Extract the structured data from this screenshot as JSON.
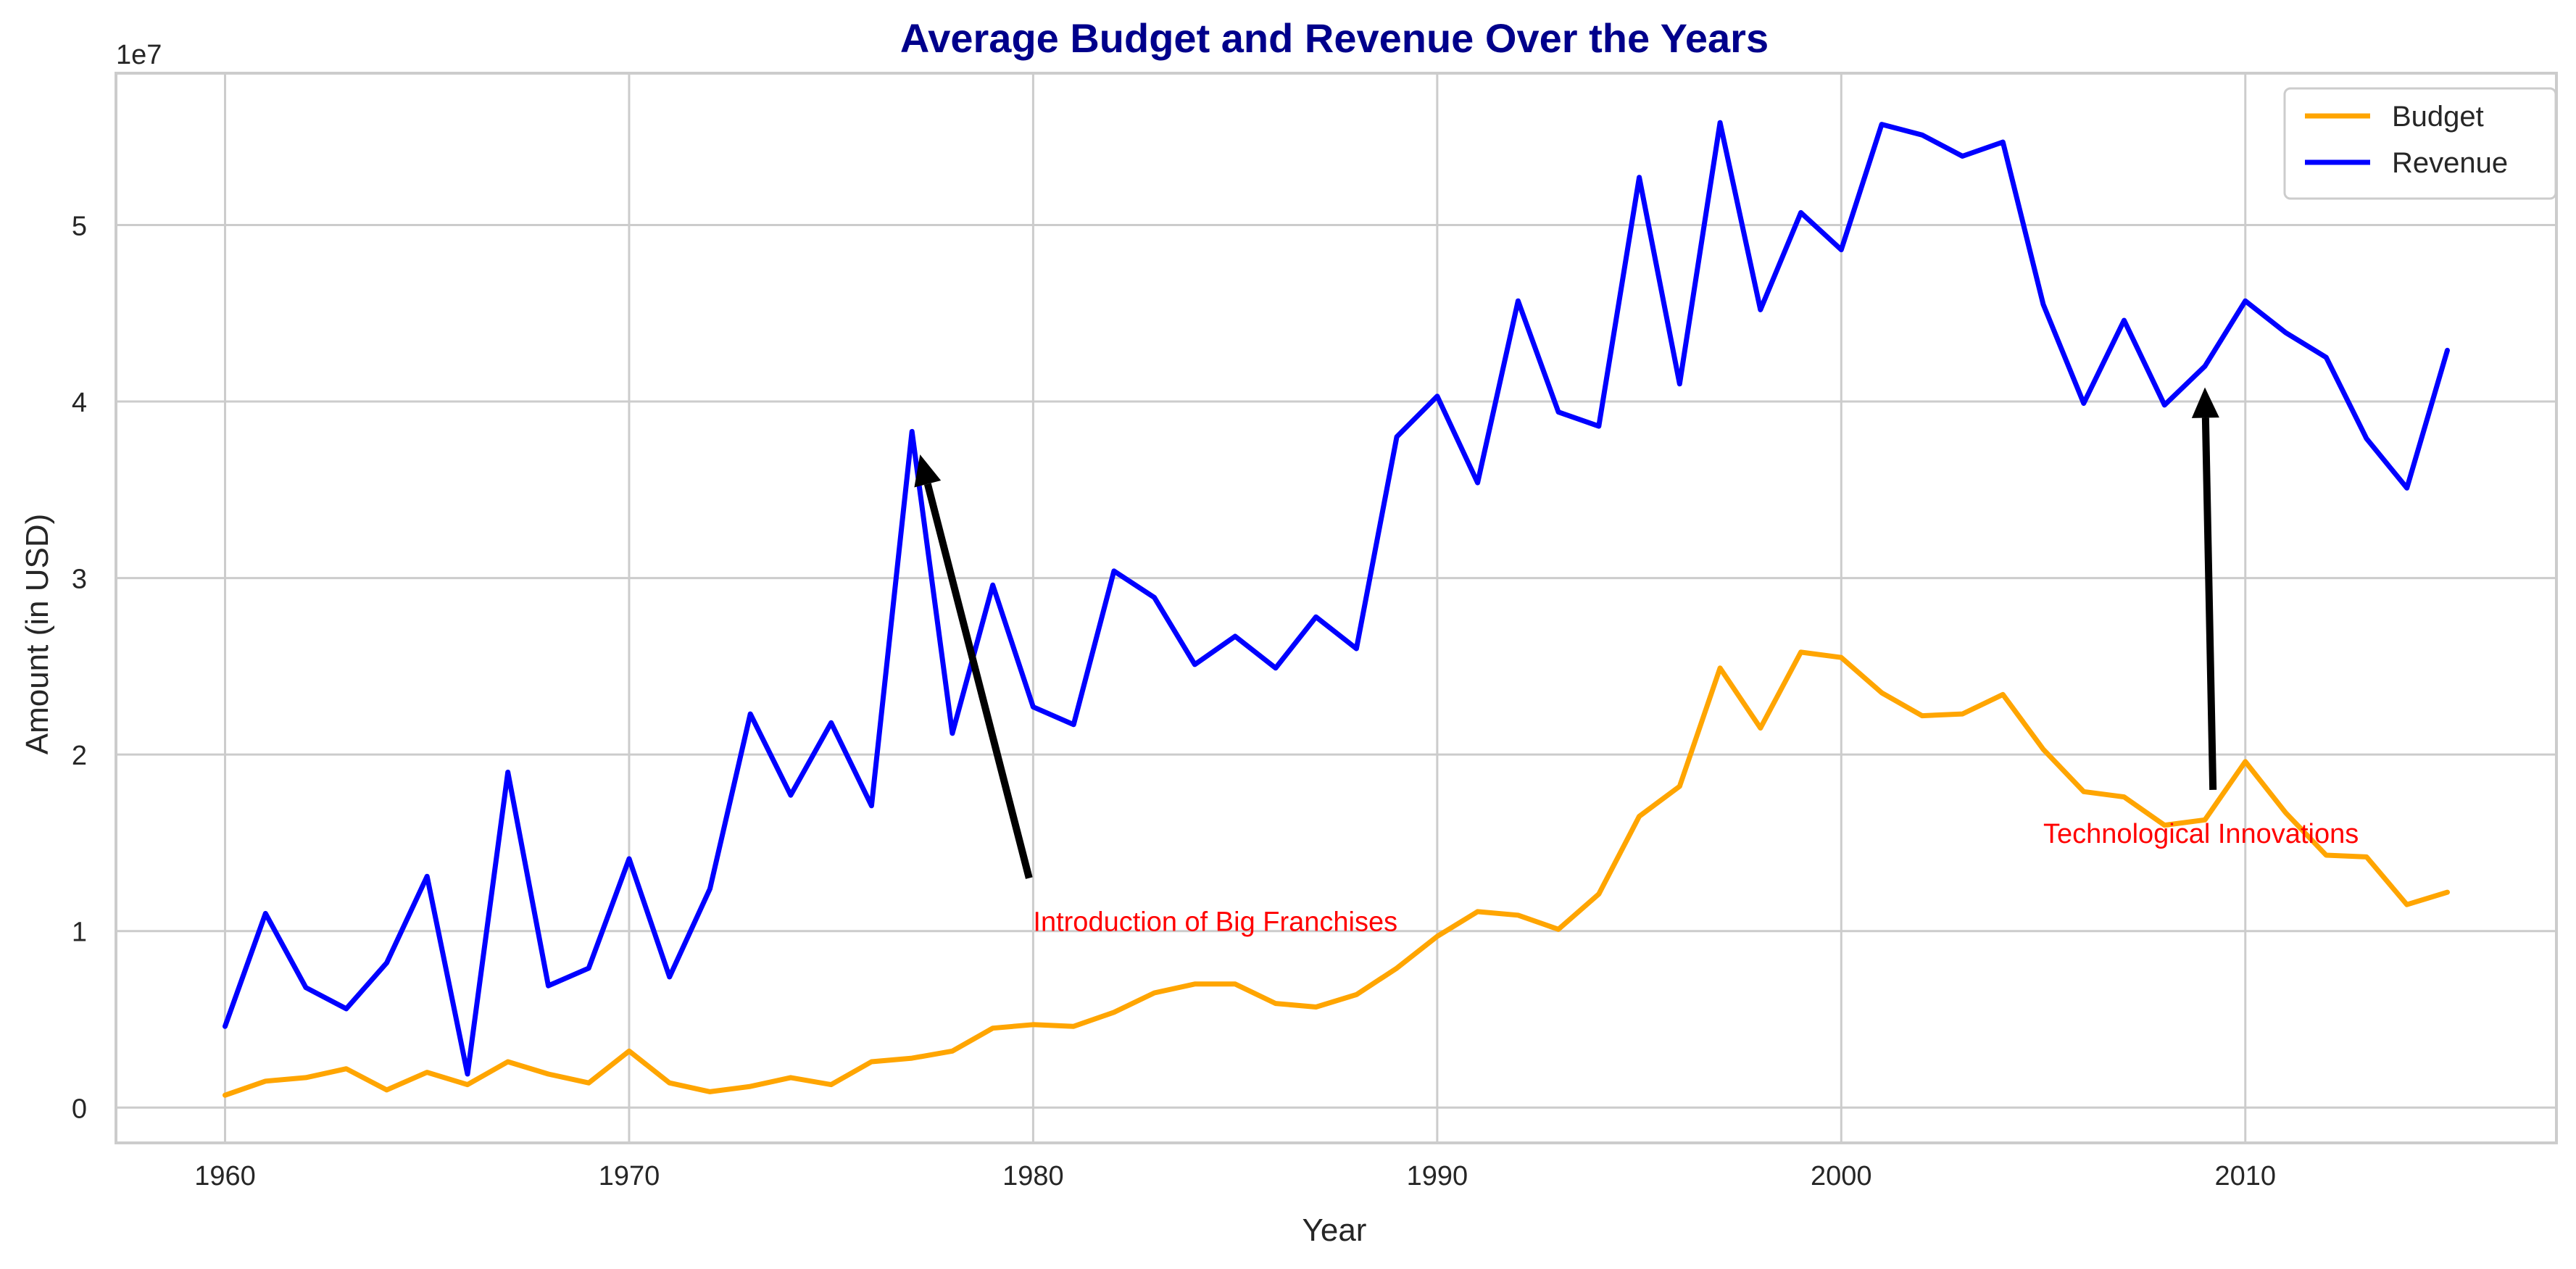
{
  "chart_data": {
    "type": "line",
    "title": "Average Budget and Revenue Over the Years",
    "xlabel": "Year",
    "ylabel": "Amount (in USD)",
    "y_offset_text": "1e7",
    "xlim": [
      1957.3,
      2017.7
    ],
    "ylim": [
      -2000000,
      58600000
    ],
    "xticks": [
      1960,
      1970,
      1980,
      1990,
      2000,
      2010
    ],
    "yticks": [
      0,
      1,
      2,
      3,
      4,
      5
    ],
    "grid": true,
    "legend_position": "top-right",
    "x": [
      1960,
      1961,
      1962,
      1963,
      1964,
      1965,
      1966,
      1967,
      1968,
      1969,
      1970,
      1971,
      1972,
      1973,
      1974,
      1975,
      1976,
      1977,
      1978,
      1979,
      1980,
      1981,
      1982,
      1983,
      1984,
      1985,
      1986,
      1987,
      1988,
      1989,
      1990,
      1991,
      1992,
      1993,
      1994,
      1995,
      1996,
      1997,
      1998,
      1999,
      2000,
      2001,
      2002,
      2003,
      2004,
      2005,
      2006,
      2007,
      2008,
      2009,
      2010,
      2011,
      2012,
      2013,
      2014,
      2015
    ],
    "series": [
      {
        "name": "Budget",
        "color": "#ffa500",
        "values": [
          700000,
          1500000,
          1700000,
          2200000,
          1000000,
          2000000,
          1300000,
          2600000,
          1900000,
          1400000,
          3200000,
          1400000,
          900000,
          1200000,
          1700000,
          1300000,
          2600000,
          2800000,
          3200000,
          4500000,
          4700000,
          4600000,
          5400000,
          6500000,
          7000000,
          7000000,
          5900000,
          5700000,
          6400000,
          7900000,
          9700000,
          11100000,
          10900000,
          10100000,
          12100000,
          16500000,
          18200000,
          24900000,
          21500000,
          25800000,
          25500000,
          23500000,
          22200000,
          22300000,
          23400000,
          20300000,
          17900000,
          17600000,
          16000000,
          16300000,
          19600000,
          16700000,
          14300000,
          14200000,
          11500000,
          12200000
        ]
      },
      {
        "name": "Revenue",
        "color": "#0000ff",
        "values": [
          4600000,
          11000000,
          6800000,
          5600000,
          8200000,
          13100000,
          1900000,
          19000000,
          6900000,
          7900000,
          14100000,
          7400000,
          12400000,
          22300000,
          17700000,
          21800000,
          17100000,
          38300000,
          21200000,
          29600000,
          22700000,
          21700000,
          30400000,
          28900000,
          25100000,
          26700000,
          24900000,
          27800000,
          26000000,
          38000000,
          40300000,
          35400000,
          45700000,
          39400000,
          38600000,
          52700000,
          41000000,
          55800000,
          45200000,
          50700000,
          48600000,
          55700000,
          55100000,
          53900000,
          54700000,
          45500000,
          39900000,
          44600000,
          39800000,
          42000000,
          45700000,
          43900000,
          42500000,
          37900000,
          35100000,
          42900000
        ]
      }
    ],
    "annotations": [
      {
        "text": "Introduction of Big Franchises",
        "text_x": 1980,
        "text_y": 10000000,
        "arrow_from": [
          1979.9,
          13000000
        ],
        "arrow_to": [
          1977.2,
          37000000
        ]
      },
      {
        "text": "Technological Innovations",
        "text_x": 2005,
        "text_y": 15000000,
        "arrow_from": [
          2009.2,
          18000000
        ],
        "arrow_to": [
          2009.0,
          40800000
        ]
      }
    ]
  }
}
